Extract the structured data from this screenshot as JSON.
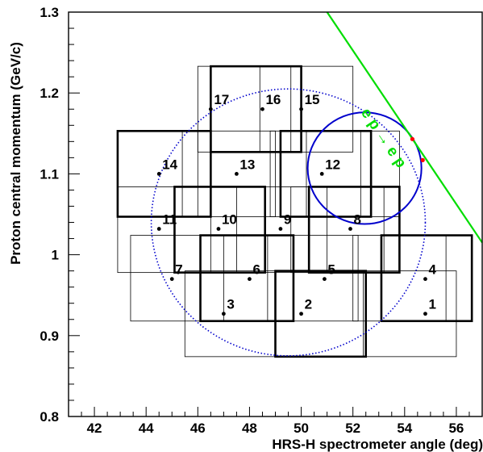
{
  "chart_data": {
    "type": "scatter",
    "xlabel": "HRS-H spectrometer angle (deg)",
    "ylabel": "Proton central momentum (GeV/c)",
    "xlim": [
      41,
      57
    ],
    "ylim": [
      0.8,
      1.3
    ],
    "xticks": {
      "major": [
        42,
        44,
        46,
        48,
        50,
        52,
        54,
        56
      ],
      "labels": [
        "42",
        "44",
        "46",
        "48",
        "50",
        "52",
        "54",
        "56"
      ],
      "minor_step": 0.5
    },
    "yticks": {
      "major": [
        0.8,
        0.9,
        1.0,
        1.1,
        1.2,
        1.3
      ],
      "labels": [
        "0.8",
        "0.9",
        "1",
        "1.1",
        "1.2",
        "1.3"
      ],
      "minor_step": 0.02
    },
    "grid": false,
    "kinematic_points": [
      {
        "label": "1",
        "x": 54.8,
        "y": 0.927
      },
      {
        "label": "2",
        "x": 50.0,
        "y": 0.927
      },
      {
        "label": "3",
        "x": 47.0,
        "y": 0.927
      },
      {
        "label": "4",
        "x": 54.8,
        "y": 0.97
      },
      {
        "label": "5",
        "x": 50.9,
        "y": 0.97
      },
      {
        "label": "6",
        "x": 48.0,
        "y": 0.97
      },
      {
        "label": "7",
        "x": 45.0,
        "y": 0.97
      },
      {
        "label": "8",
        "x": 51.9,
        "y": 1.032
      },
      {
        "label": "9",
        "x": 49.2,
        "y": 1.032
      },
      {
        "label": "10",
        "x": 46.8,
        "y": 1.032
      },
      {
        "label": "11",
        "x": 44.5,
        "y": 1.032
      },
      {
        "label": "12",
        "x": 50.8,
        "y": 1.1
      },
      {
        "label": "13",
        "x": 47.5,
        "y": 1.1
      },
      {
        "label": "14",
        "x": 44.5,
        "y": 1.1
      },
      {
        "label": "15",
        "x": 50.0,
        "y": 1.18
      },
      {
        "label": "16",
        "x": 48.5,
        "y": 1.18
      },
      {
        "label": "17",
        "x": 46.5,
        "y": 1.18
      }
    ],
    "acceptance_boxes": [
      {
        "x0": 46.5,
        "x1": 50.0,
        "y0": 1.127,
        "y1": 1.233,
        "style": "thick"
      },
      {
        "x0": 46.0,
        "x1": 49.6,
        "y0": 1.127,
        "y1": 1.233,
        "style": "thin"
      },
      {
        "x0": 48.4,
        "x1": 52.0,
        "y0": 1.127,
        "y1": 1.233,
        "style": "thin"
      },
      {
        "x0": 42.9,
        "x1": 46.5,
        "y0": 1.047,
        "y1": 1.153,
        "style": "thick"
      },
      {
        "x0": 42.9,
        "x1": 46.0,
        "y0": 1.047,
        "y1": 1.153,
        "style": "thin"
      },
      {
        "x0": 45.4,
        "x1": 49.0,
        "y0": 1.047,
        "y1": 1.153,
        "style": "thin"
      },
      {
        "x0": 49.2,
        "x1": 52.7,
        "y0": 1.047,
        "y1": 1.153,
        "style": "thick"
      },
      {
        "x0": 48.8,
        "x1": 52.3,
        "y0": 1.047,
        "y1": 1.153,
        "style": "thin"
      },
      {
        "x0": 50.2,
        "x1": 53.8,
        "y0": 1.047,
        "y1": 1.153,
        "style": "thin"
      },
      {
        "x0": 45.1,
        "x1": 48.6,
        "y0": 0.978,
        "y1": 1.084,
        "style": "thick"
      },
      {
        "x0": 42.9,
        "x1": 46.5,
        "y0": 0.978,
        "y1": 1.084,
        "style": "thin"
      },
      {
        "x0": 47.5,
        "x1": 51.0,
        "y0": 0.978,
        "y1": 1.084,
        "style": "thin"
      },
      {
        "x0": 50.3,
        "x1": 53.8,
        "y0": 0.978,
        "y1": 1.084,
        "style": "thick"
      },
      {
        "x0": 49.6,
        "x1": 53.2,
        "y0": 0.978,
        "y1": 1.084,
        "style": "thin"
      },
      {
        "x0": 46.1,
        "x1": 49.7,
        "y0": 0.918,
        "y1": 1.024,
        "style": "thick"
      },
      {
        "x0": 43.4,
        "x1": 47.0,
        "y0": 0.918,
        "y1": 1.024,
        "style": "thin"
      },
      {
        "x0": 48.7,
        "x1": 52.2,
        "y0": 0.918,
        "y1": 1.024,
        "style": "thin"
      },
      {
        "x0": 53.1,
        "x1": 56.6,
        "y0": 0.918,
        "y1": 1.024,
        "style": "thick"
      },
      {
        "x0": 52.0,
        "x1": 55.6,
        "y0": 0.918,
        "y1": 1.024,
        "style": "thin"
      },
      {
        "x0": 49.0,
        "x1": 52.5,
        "y0": 0.874,
        "y1": 0.98,
        "style": "thick"
      },
      {
        "x0": 45.5,
        "x1": 49.0,
        "y0": 0.874,
        "y1": 0.98,
        "style": "thin"
      },
      {
        "x0": 52.4,
        "x1": 56.0,
        "y0": 0.874,
        "y1": 0.98,
        "style": "thin"
      }
    ],
    "ellipse_large": {
      "cx": 49.5,
      "cy": 1.04,
      "rx": 5.3,
      "ry": 0.165,
      "color": "#0000cc",
      "style": "dotted"
    },
    "ellipse_small": {
      "cx": 52.45,
      "cy": 1.107,
      "rx": 2.2,
      "ry": 0.069,
      "color": "#0000cc",
      "style": "solid"
    },
    "reaction_line": {
      "label": "e p → e p",
      "x0": 51.0,
      "y0": 1.3,
      "x1": 57.0,
      "y1": 1.015,
      "color": "#00dd00"
    },
    "intersection_points": [
      {
        "x": 54.3,
        "y": 1.143
      },
      {
        "x": 54.7,
        "y": 1.117
      }
    ],
    "colors": {
      "axis": "#000000",
      "boxes": "#000000",
      "points": "#000000",
      "ellipses": "#0000cc",
      "reaction": "#00dd00",
      "markers": "#ff0000"
    }
  }
}
